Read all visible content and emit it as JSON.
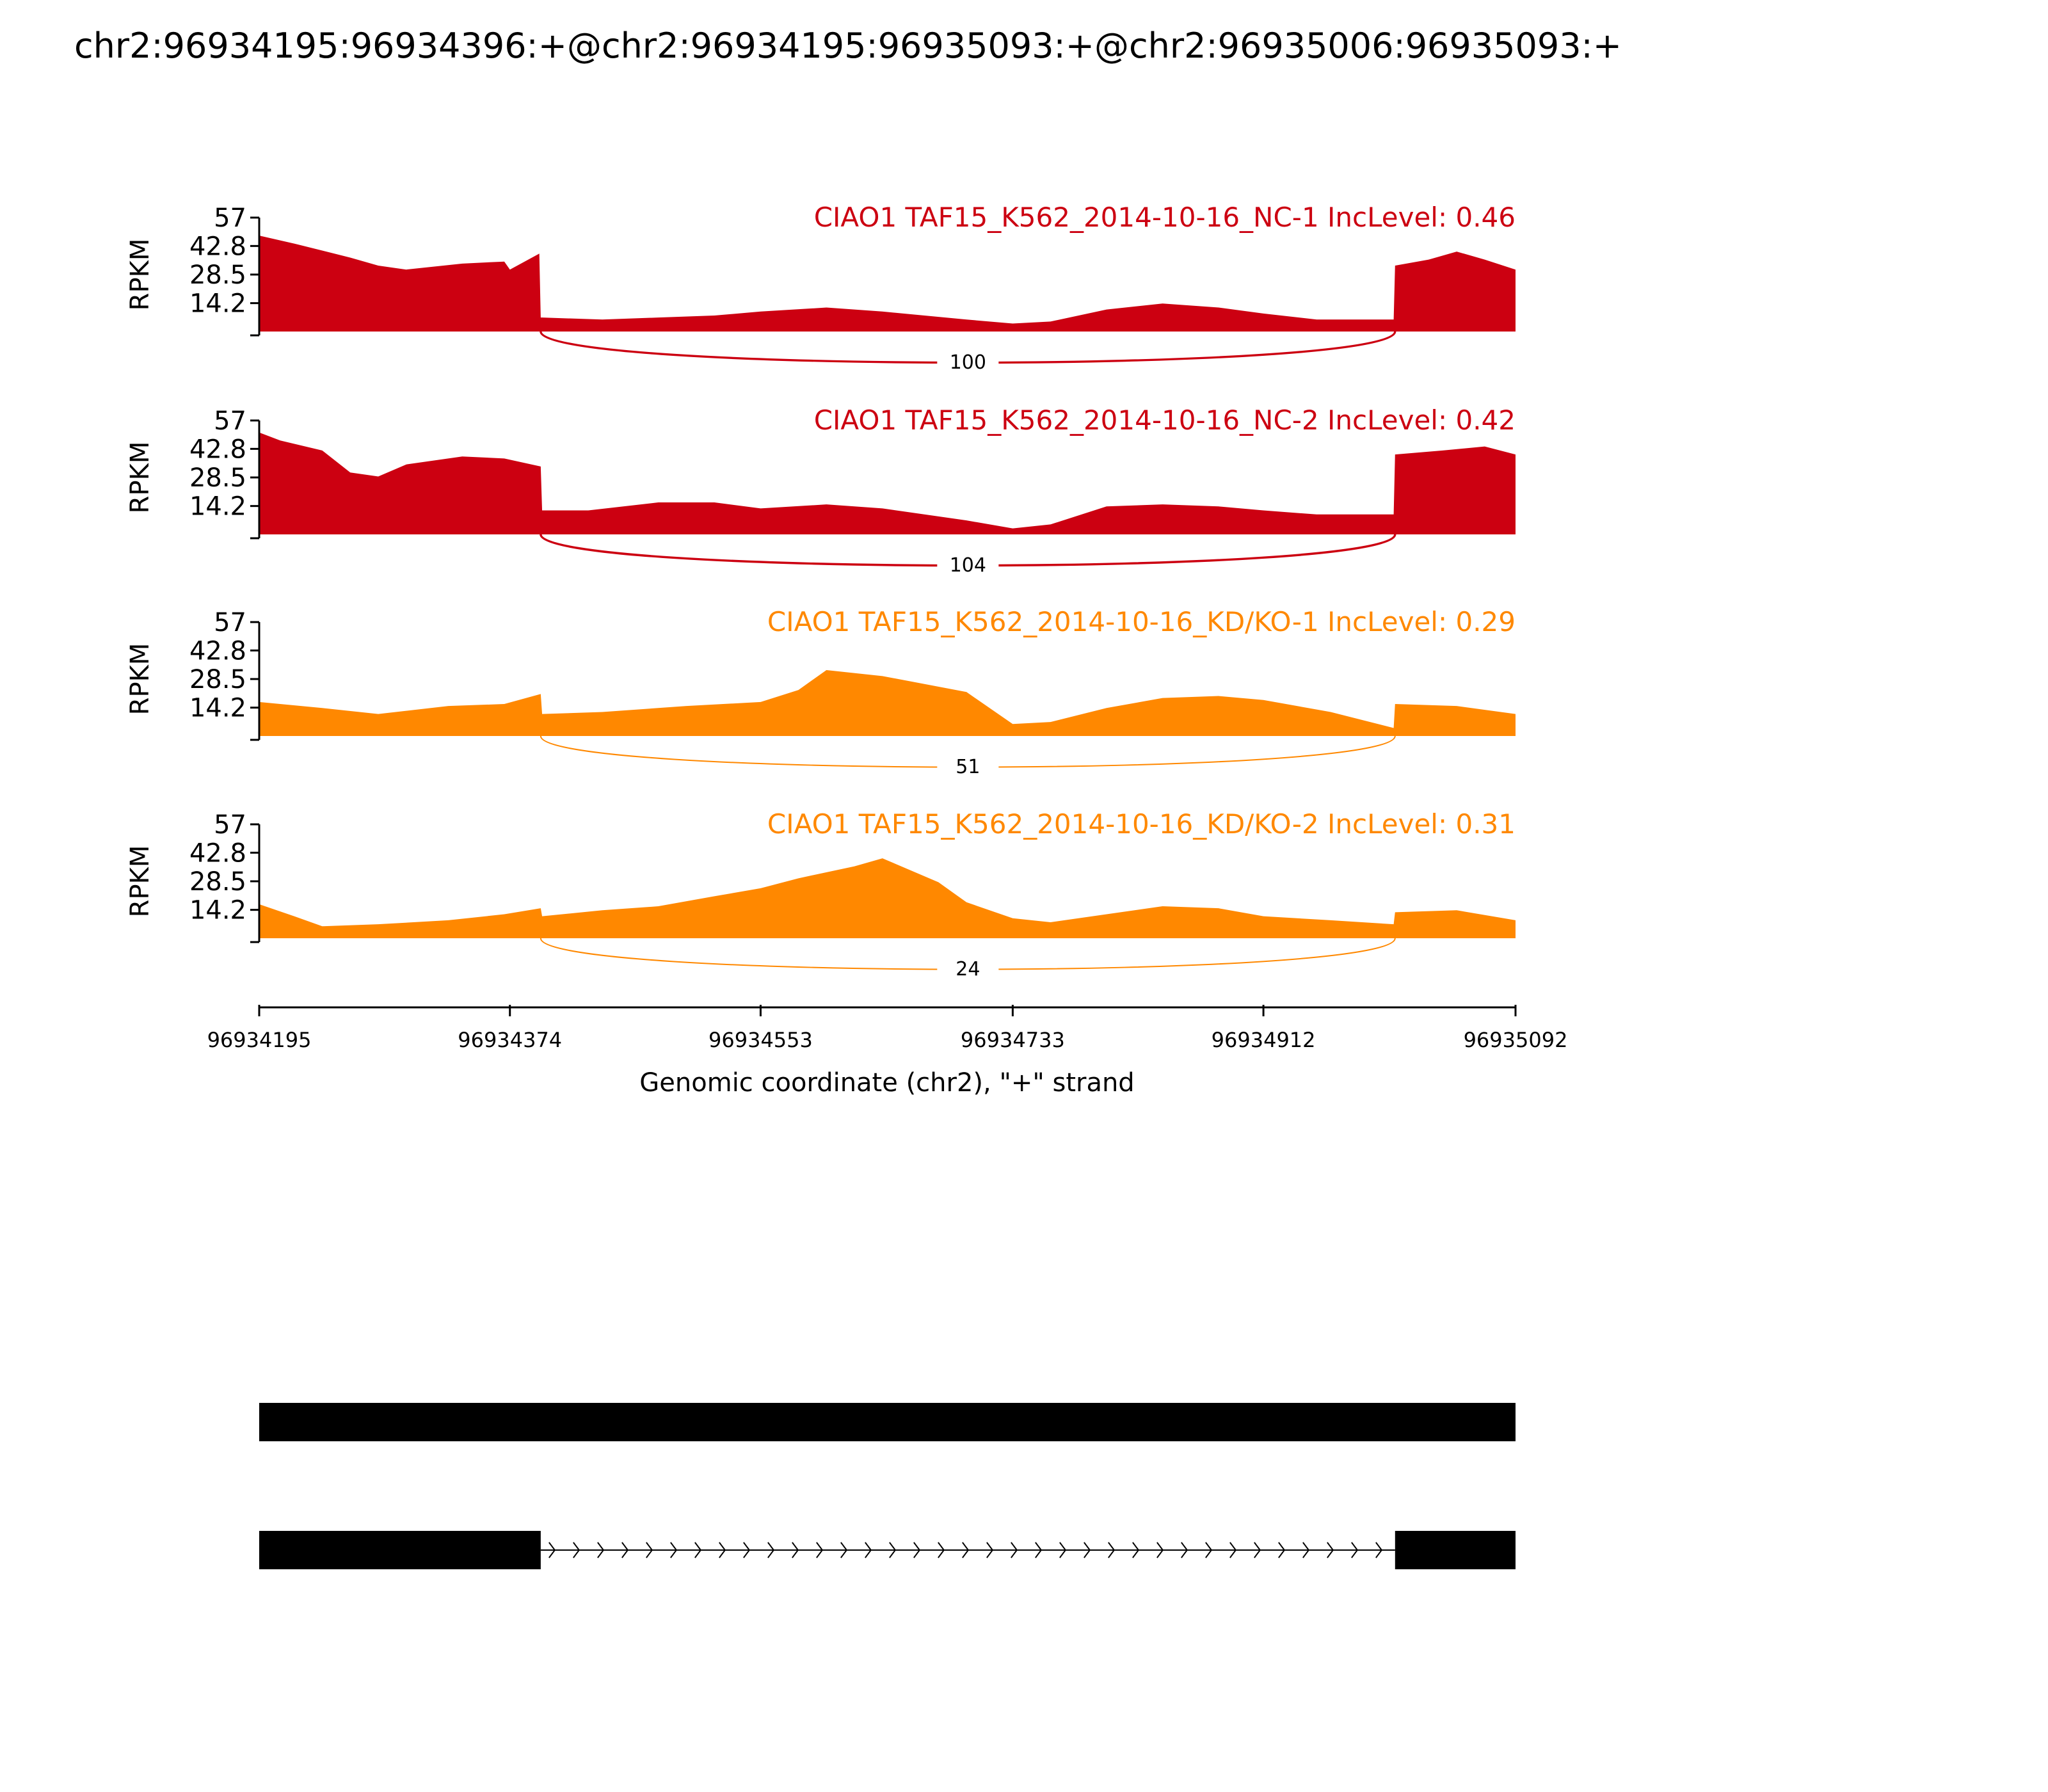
{
  "title": "chr2:96934195:96934396:+@chr2:96934195:96935093:+@chr2:96935006:96935093:+",
  "chart_data": {
    "type": "area",
    "chart_kind": "sashimi-plot",
    "x_range": [
      96934195,
      96935092
    ],
    "x_ticks": [
      {
        "value": 96934195,
        "label": "96934195"
      },
      {
        "value": 96934374,
        "label": "96934374"
      },
      {
        "value": 96934553,
        "label": "96934553"
      },
      {
        "value": 96934733,
        "label": "96934733"
      },
      {
        "value": 96934912,
        "label": "96934912"
      },
      {
        "value": 96935092,
        "label": "96935092"
      }
    ],
    "xlabel": "Genomic coordinate (chr2), \"+\" strand",
    "ylabel": "RPKM",
    "ylim": [
      0,
      57
    ],
    "y_ticks": [
      "57",
      "42.8",
      "28.5",
      "14.2"
    ],
    "y_tick_values": [
      57,
      42.8,
      28.5,
      14.2
    ],
    "tracks": [
      {
        "label": "CIAO1 TAF15_K562_2014-10-16_NC-1 IncLevel: 0.46",
        "color": "#cc0011",
        "junction": {
          "start": 96934396,
          "end": 96935006,
          "count": "100"
        },
        "x": [
          96934195,
          96934220,
          96934260,
          96934280,
          96934300,
          96934340,
          96934370,
          96934374,
          96934395,
          96934396,
          96934397,
          96934440,
          96934480,
          96934520,
          96934553,
          96934600,
          96934640,
          96934700,
          96934733,
          96934760,
          96934800,
          96934840,
          96934880,
          96934912,
          96934950,
          96935005,
          96935006,
          96935030,
          96935050,
          96935070,
          96935092
        ],
        "y": [
          48,
          44,
          37,
          33,
          31,
          34,
          35,
          31,
          39,
          7,
          7,
          6,
          7,
          8,
          10,
          12,
          10,
          6,
          4,
          5,
          11,
          14,
          12,
          9,
          6,
          6,
          33,
          36,
          40,
          36,
          31
        ]
      },
      {
        "label": "CIAO1 TAF15_K562_2014-10-16_NC-2 IncLevel: 0.42",
        "color": "#cc0011",
        "junction": {
          "start": 96934396,
          "end": 96935006,
          "count": "104"
        },
        "x": [
          96934195,
          96934210,
          96934240,
          96934260,
          96934280,
          96934300,
          96934340,
          96934370,
          96934396,
          96934397,
          96934430,
          96934480,
          96934520,
          96934553,
          96934600,
          96934640,
          96934700,
          96934733,
          96934760,
          96934800,
          96934840,
          96934880,
          96934912,
          96934950,
          96935005,
          96935006,
          96935040,
          96935070,
          96935092
        ],
        "y": [
          51,
          47,
          42,
          31,
          29,
          35,
          39,
          38,
          34,
          12,
          12,
          16,
          16,
          13,
          15,
          13,
          7,
          3,
          5,
          14,
          15,
          14,
          12,
          10,
          10,
          40,
          42,
          44,
          40
        ]
      },
      {
        "label": "CIAO1 TAF15_K562_2014-10-16_KD/KO-1 IncLevel: 0.29",
        "color": "#ff8800",
        "junction": {
          "start": 96934396,
          "end": 96935006,
          "count": "51"
        },
        "x": [
          96934195,
          96934240,
          96934280,
          96934330,
          96934370,
          96934396,
          96934397,
          96934440,
          96934500,
          96934553,
          96934580,
          96934600,
          96934640,
          96934700,
          96934733,
          96934760,
          96934800,
          96934840,
          96934880,
          96934912,
          96934960,
          96935005,
          96935006,
          96935050,
          96935092
        ],
        "y": [
          17,
          14,
          11,
          15,
          16,
          21,
          11,
          12,
          15,
          17,
          23,
          33,
          30,
          22,
          6,
          7,
          14,
          19,
          20,
          18,
          12,
          4,
          16,
          15,
          11
        ]
      },
      {
        "label": "CIAO1 TAF15_K562_2014-10-16_KD/KO-2 IncLevel: 0.31",
        "color": "#ff8800",
        "junction": {
          "start": 96934396,
          "end": 96935006,
          "count": "24"
        },
        "x": [
          96934195,
          96934220,
          96934240,
          96934280,
          96934330,
          96934370,
          96934396,
          96934397,
          96934440,
          96934480,
          96934520,
          96934553,
          96934580,
          96934620,
          96934640,
          96934680,
          96934700,
          96934733,
          96934760,
          96934800,
          96934840,
          96934880,
          96934912,
          96934960,
          96935005,
          96935006,
          96935050,
          96935092
        ],
        "y": [
          17,
          11,
          6,
          7,
          9,
          12,
          15,
          11,
          14,
          16,
          21,
          25,
          30,
          36,
          40,
          28,
          18,
          10,
          8,
          12,
          16,
          15,
          11,
          9,
          7,
          13,
          14,
          9
        ]
      }
    ],
    "isoforms": [
      {
        "exons": [
          [
            96934195,
            96935092
          ]
        ],
        "strand": "+"
      },
      {
        "exons": [
          [
            96934195,
            96934396
          ],
          [
            96935006,
            96935092
          ]
        ],
        "strand": "+"
      }
    ]
  }
}
